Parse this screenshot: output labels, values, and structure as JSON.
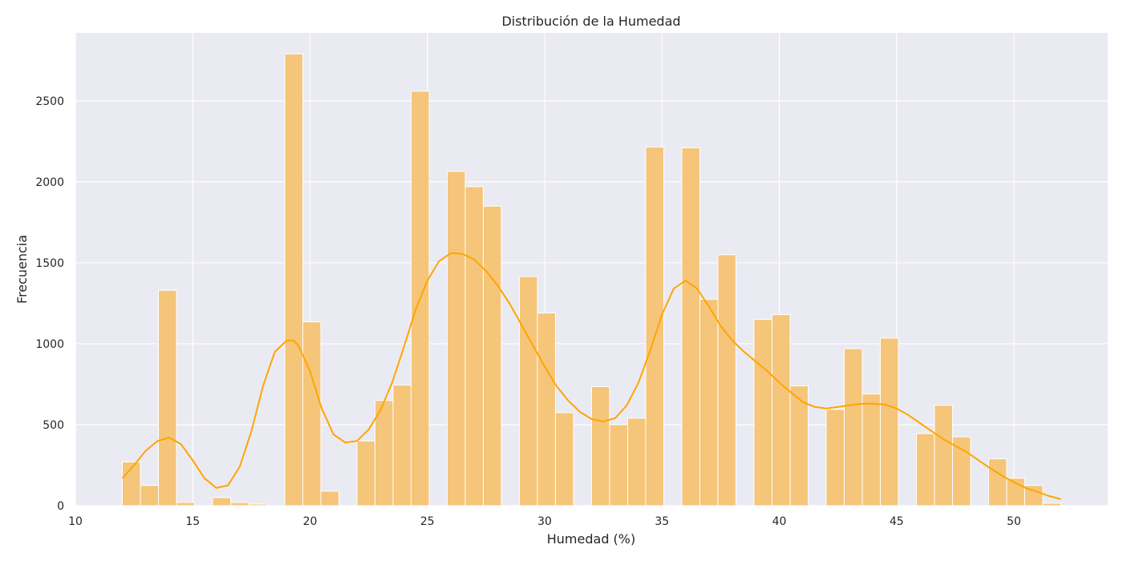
{
  "chart_data": {
    "type": "histogram",
    "title": "Distribución de la Humedad",
    "xlabel": "Humedad (%)",
    "ylabel": "Frecuencia",
    "xlim": [
      10,
      54
    ],
    "ylim": [
      0,
      2920
    ],
    "xticks": [
      10,
      15,
      20,
      25,
      30,
      35,
      40,
      45,
      50
    ],
    "yticks": [
      0,
      500,
      1000,
      1500,
      2000,
      2500
    ],
    "grid": true,
    "bin_start": 12,
    "bin_width": 0.7692,
    "counts": [
      270,
      125,
      1330,
      20,
      0,
      50,
      20,
      10,
      0,
      2790,
      1135,
      90,
      0,
      400,
      650,
      745,
      2560,
      0,
      2065,
      1970,
      1850,
      0,
      1415,
      1190,
      575,
      0,
      735,
      500,
      540,
      2215,
      0,
      2210,
      1275,
      1550,
      0,
      1150,
      1180,
      740,
      0,
      595,
      970,
      690,
      1035,
      0,
      445,
      620,
      425,
      0,
      290,
      170,
      125,
      15
    ],
    "kde": {
      "x": [
        12,
        12.5,
        13,
        13.5,
        14,
        14.5,
        15,
        15.5,
        16,
        16.5,
        17,
        17.5,
        18,
        18.5,
        19,
        19.3,
        19.5,
        20,
        20.5,
        21,
        21.5,
        22,
        22.5,
        23,
        23.5,
        24,
        24.5,
        25,
        25.5,
        26,
        26.5,
        27,
        27.5,
        28,
        28.5,
        29,
        29.5,
        30,
        30.5,
        31,
        31.5,
        32,
        32.5,
        33,
        33.5,
        34,
        34.5,
        35,
        35.5,
        36,
        36.5,
        37,
        37.5,
        38,
        38.5,
        39,
        39.5,
        40,
        40.5,
        41,
        41.5,
        42,
        42.5,
        43,
        43.5,
        44,
        44.5,
        45,
        45.5,
        46,
        46.5,
        47,
        47.5,
        48,
        48.5,
        49,
        49.5,
        50,
        50.5,
        51,
        51.5,
        52
      ],
      "y": [
        170,
        250,
        340,
        400,
        420,
        380,
        280,
        170,
        110,
        125,
        240,
        460,
        740,
        950,
        1020,
        1020,
        990,
        830,
        600,
        440,
        390,
        400,
        470,
        590,
        760,
        980,
        1210,
        1390,
        1510,
        1560,
        1555,
        1520,
        1450,
        1360,
        1250,
        1120,
        990,
        860,
        740,
        650,
        580,
        535,
        520,
        540,
        620,
        760,
        960,
        1180,
        1340,
        1390,
        1340,
        1230,
        1110,
        1020,
        950,
        890,
        830,
        760,
        700,
        640,
        610,
        600,
        610,
        620,
        630,
        630,
        625,
        600,
        560,
        510,
        460,
        410,
        370,
        330,
        280,
        230,
        185,
        145,
        110,
        85,
        60,
        40
      ]
    },
    "colors": {
      "bar_fill": "#f5c57a",
      "bar_edge": "#ffffff",
      "kde_line": "#ffa500",
      "plot_bg": "#eaeaf2",
      "grid": "#ffffff"
    }
  }
}
